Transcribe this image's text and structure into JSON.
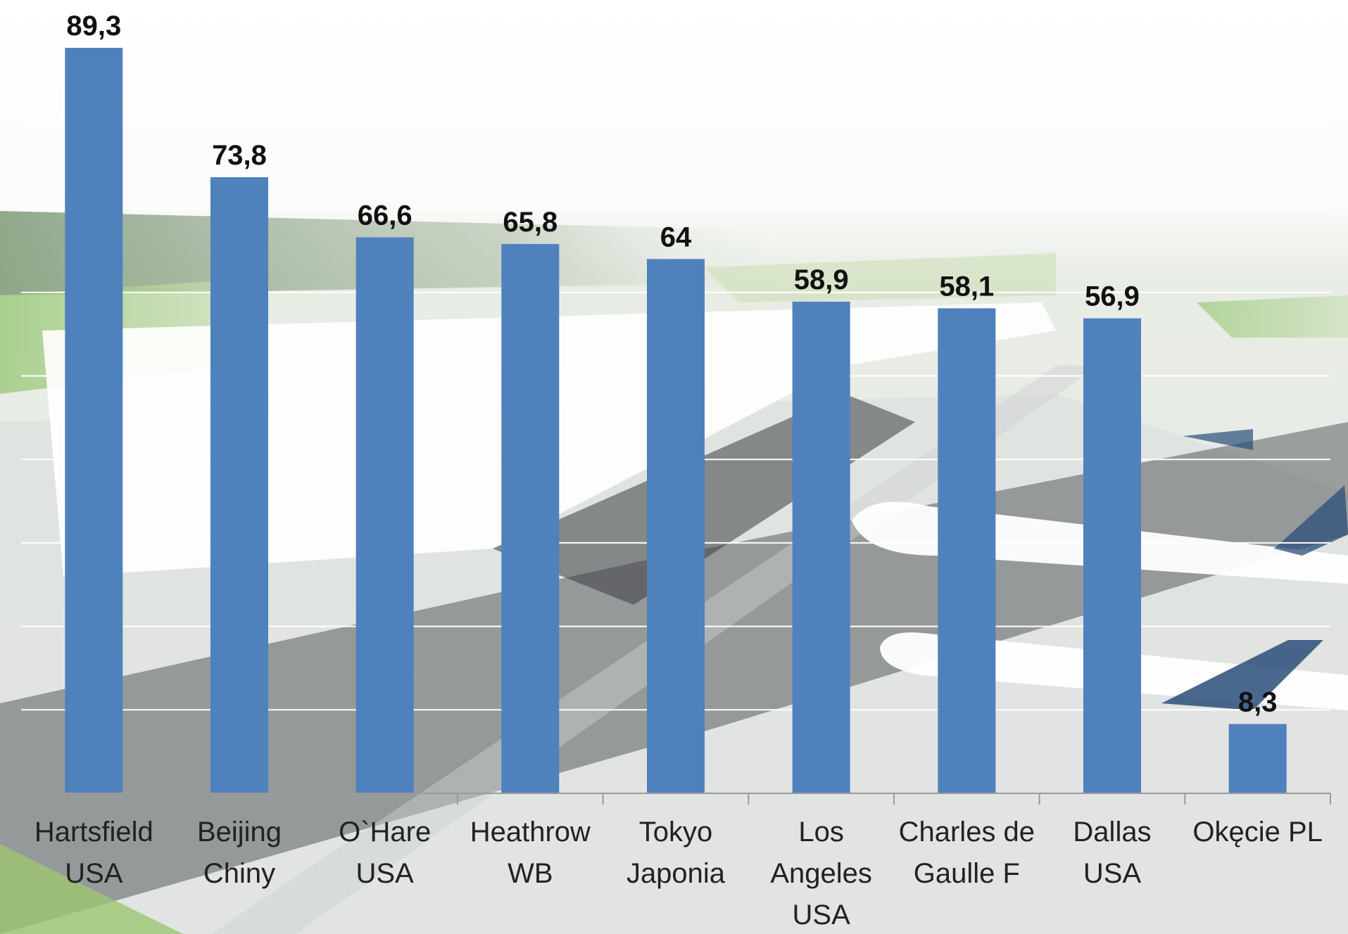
{
  "chart_data": {
    "type": "bar",
    "categories": [
      [
        "Hartsfield",
        "USA"
      ],
      [
        "Beijing",
        "Chiny"
      ],
      [
        "O`Hare",
        "USA"
      ],
      [
        "Heathrow",
        "WB"
      ],
      [
        "Tokyo",
        "Japonia"
      ],
      [
        "Los",
        "Angeles",
        "USA"
      ],
      [
        "Charles de",
        "Gaulle F"
      ],
      [
        "Dallas",
        "USA"
      ],
      [
        "Okęcie PL"
      ]
    ],
    "values": [
      89.3,
      73.8,
      66.6,
      65.8,
      64,
      58.9,
      58.1,
      56.9,
      8.3
    ],
    "value_labels": [
      "89,3",
      "73,8",
      "66,6",
      "65,8",
      "64",
      "58,9",
      "58,1",
      "56,9",
      "8,3"
    ],
    "ylim": [
      0,
      90
    ],
    "grid": true,
    "legend": "none",
    "colors": {
      "bar": "#4f81bd"
    }
  }
}
